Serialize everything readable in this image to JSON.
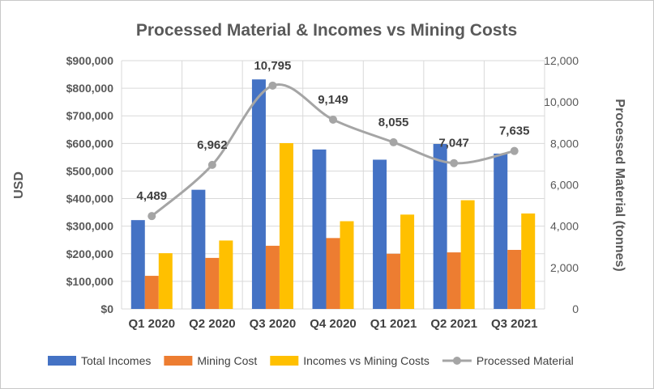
{
  "chart_data": {
    "type": "bar",
    "title": "Processed Material & Incomes vs Mining Costs",
    "categories": [
      "Q1 2020",
      "Q2 2020",
      "Q3 2020",
      "Q4 2020",
      "Q1 2021",
      "Q2 2021",
      "Q3 2021"
    ],
    "ylabel": "USD",
    "y2label": "Processed Material (tonnes)",
    "ylim": [
      0,
      900000
    ],
    "y2lim": [
      0,
      12000
    ],
    "y_ticks": [
      "$0",
      "$100,000",
      "$200,000",
      "$300,000",
      "$400,000",
      "$500,000",
      "$600,000",
      "$700,000",
      "$800,000",
      "$900,000"
    ],
    "y2_ticks": [
      "0",
      "2,000",
      "4,000",
      "6,000",
      "8,000",
      "10,000",
      "12,000"
    ],
    "grid": true,
    "legend_position": "bottom",
    "series": [
      {
        "name": "Total Incomes",
        "kind": "bar",
        "color": "#4472C4",
        "values": [
          322000,
          432000,
          832000,
          578000,
          541000,
          598000,
          563000
        ]
      },
      {
        "name": "Mining Cost",
        "kind": "bar",
        "color": "#ED7D31",
        "values": [
          120000,
          185000,
          229000,
          257000,
          200000,
          205000,
          214000
        ]
      },
      {
        "name": "Incomes vs Mining Costs",
        "kind": "bar",
        "color": "#FFC000",
        "values": [
          202000,
          248000,
          601000,
          318000,
          342000,
          394000,
          346000
        ]
      },
      {
        "name": "Processed Material",
        "kind": "line",
        "axis": "right",
        "color": "#A5A5A5",
        "values": [
          4489,
          6962,
          10795,
          9149,
          8055,
          7047,
          7635
        ],
        "labels": [
          "4,489",
          "6,962",
          "10,795",
          "9,149",
          "8,055",
          "7,047",
          "7,635"
        ]
      }
    ]
  }
}
